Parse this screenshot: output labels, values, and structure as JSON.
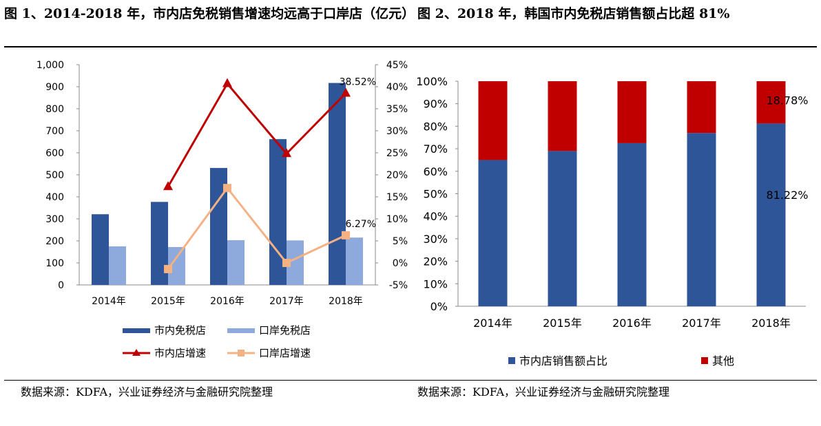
{
  "figure1": {
    "title": "图 1、2014-2018 年，市内店免税销售增速均远高于口岸店（亿元）",
    "source": "数据来源：KDFA，兴业证券经济与金融研究院整理"
  },
  "figure2": {
    "title": "图 2、2018 年，韩国市内免税店销售额占比超 81%",
    "source": "数据来源：KDFA，兴业证券经济与金融研究院整理"
  },
  "chart_data": [
    {
      "type": "bar",
      "categories": [
        "2014年",
        "2015年",
        "2016年",
        "2017年",
        "2018年"
      ],
      "series": [
        {
          "name": "市内免税店",
          "kind": "bar",
          "axis": "left",
          "values": [
            321,
            377,
            531,
            662,
            917
          ],
          "color": "#2E5597"
        },
        {
          "name": "口岸免税店",
          "kind": "bar",
          "axis": "left",
          "values": [
            175,
            172,
            203,
            202,
            215
          ],
          "color": "#8EA9DB"
        },
        {
          "name": "市内店增速",
          "kind": "line",
          "axis": "right",
          "values": [
            null,
            17.3,
            40.7,
            24.8,
            38.52
          ],
          "color": "#C00000",
          "marker": "triangle"
        },
        {
          "name": "口岸店增速",
          "kind": "line",
          "axis": "right",
          "values": [
            null,
            -1.4,
            17.0,
            0.0,
            6.27
          ],
          "color": "#F4B183",
          "marker": "square"
        }
      ],
      "ylim": [
        0,
        1000
      ],
      "y_ticks": [
        "0",
        "100",
        "200",
        "300",
        "400",
        "500",
        "600",
        "700",
        "800",
        "900",
        "1,000"
      ],
      "y2lim": [
        -5,
        45
      ],
      "y2_ticks": [
        "-5%",
        "0%",
        "5%",
        "10%",
        "15%",
        "20%",
        "25%",
        "30%",
        "35%",
        "40%",
        "45%"
      ],
      "annotations": [
        {
          "text": "38.52%",
          "series": "市内店增速",
          "category": "2018年"
        },
        {
          "text": "6.27%",
          "series": "口岸店增速",
          "category": "2018年"
        }
      ],
      "legend_position": "bottom",
      "grid": false
    },
    {
      "type": "bar",
      "stacked": true,
      "categories": [
        "2014年",
        "2015年",
        "2016年",
        "2017年",
        "2018年"
      ],
      "series": [
        {
          "name": "市内店销售额占比",
          "values": [
            65,
            69,
            72.5,
            77,
            81.22
          ],
          "color": "#2E5597"
        },
        {
          "name": "其他",
          "values": [
            35,
            31,
            27.5,
            23,
            18.78
          ],
          "color": "#C00000"
        }
      ],
      "ylim": [
        0,
        100
      ],
      "y_ticks": [
        "0%",
        "10%",
        "20%",
        "30%",
        "40%",
        "50%",
        "60%",
        "70%",
        "80%",
        "90%",
        "100%"
      ],
      "annotations": [
        {
          "text": "18.78%",
          "series": "其他",
          "category": "2018年"
        },
        {
          "text": "81.22%",
          "series": "市内店销售额占比",
          "category": "2018年"
        }
      ],
      "legend_position": "bottom",
      "grid": false
    }
  ]
}
